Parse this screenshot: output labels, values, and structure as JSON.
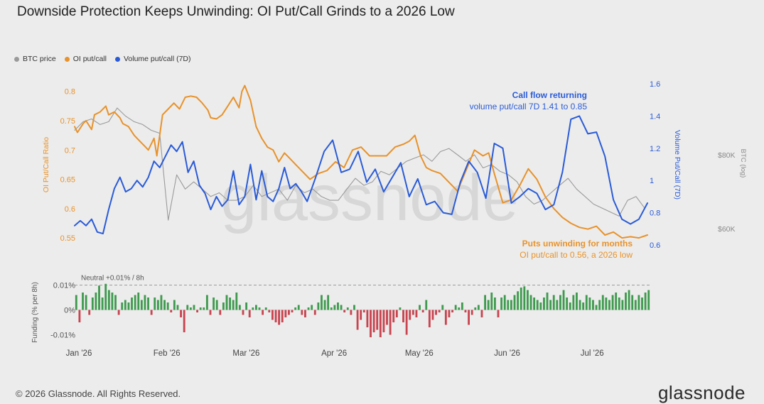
{
  "title": "Downside Protection Keeps Unwinding: OI Put/Call Grinds to a 2026 Low",
  "legend": [
    {
      "label": "BTC price",
      "color": "#9a9a9a"
    },
    {
      "label": "OI put/call",
      "color": "#e8922b"
    },
    {
      "label": "Volume put/call (7D)",
      "color": "#2a5bd7"
    }
  ],
  "footer": "© 2026 Glassnode. All Rights Reserved.",
  "brand": "glassnode",
  "watermark": "glassnode",
  "chart_data": [
    {
      "type": "line",
      "ylabel_left": "OI Put/Call Ratio",
      "ylabel_right": "Volume Put/Call (7D)",
      "ylabel_far_right": "BTC (log)",
      "yticks_left": [
        "0.8",
        "0.75",
        "0.7",
        "0.65",
        "0.6",
        "0.55"
      ],
      "ylim_left": [
        0.538,
        0.813
      ],
      "yticks_right": [
        "1.6",
        "1.4",
        "1.2",
        "1",
        "0.8",
        "0.6"
      ],
      "ylim_right": [
        0.6,
        1.6
      ],
      "yticks_far_right": [
        "$80K",
        "$60K"
      ],
      "x_range": [
        "2026-01-01",
        "2026-07-23"
      ],
      "series": [
        {
          "name": "OI put/call",
          "color": "#e8922b",
          "axis": "left",
          "x": [
            "2026-01-01",
            "2026-01-02",
            "2026-01-04",
            "2026-01-05",
            "2026-01-07",
            "2026-01-08",
            "2026-01-10",
            "2026-01-12",
            "2026-01-13",
            "2026-01-15",
            "2026-01-17",
            "2026-01-18",
            "2026-01-20",
            "2026-01-22",
            "2026-01-24",
            "2026-01-26",
            "2026-01-27",
            "2026-01-29",
            "2026-01-30",
            "2026-02-01",
            "2026-02-03",
            "2026-02-05",
            "2026-02-07",
            "2026-02-09",
            "2026-02-11",
            "2026-02-13",
            "2026-02-15",
            "2026-02-17",
            "2026-02-18",
            "2026-02-20",
            "2026-02-22",
            "2026-02-24",
            "2026-02-26",
            "2026-02-28",
            "2026-03-01",
            "2026-03-02",
            "2026-03-04",
            "2026-03-06",
            "2026-03-08",
            "2026-03-10",
            "2026-03-12",
            "2026-03-14",
            "2026-03-16",
            "2026-03-18",
            "2026-03-20",
            "2026-03-22",
            "2026-03-25",
            "2026-03-28",
            "2026-03-31",
            "2026-04-03",
            "2026-04-06",
            "2026-04-09",
            "2026-04-12",
            "2026-04-15",
            "2026-04-18",
            "2026-04-21",
            "2026-04-24",
            "2026-04-27",
            "2026-04-29",
            "2026-05-01",
            "2026-05-03",
            "2026-05-05",
            "2026-05-07",
            "2026-05-10",
            "2026-05-13",
            "2026-05-16",
            "2026-05-19",
            "2026-05-22",
            "2026-05-25",
            "2026-05-27",
            "2026-05-29",
            "2026-06-01",
            "2026-06-04",
            "2026-06-07",
            "2026-06-10",
            "2026-06-13",
            "2026-06-16",
            "2026-06-19",
            "2026-06-22",
            "2026-06-25",
            "2026-06-28",
            "2026-07-01",
            "2026-07-04",
            "2026-07-07",
            "2026-07-10",
            "2026-07-13",
            "2026-07-16",
            "2026-07-19",
            "2026-07-22"
          ],
          "y": [
            0.74,
            0.73,
            0.745,
            0.75,
            0.735,
            0.76,
            0.765,
            0.775,
            0.76,
            0.765,
            0.755,
            0.745,
            0.74,
            0.725,
            0.715,
            0.705,
            0.7,
            0.72,
            0.69,
            0.76,
            0.77,
            0.78,
            0.77,
            0.79,
            0.792,
            0.79,
            0.78,
            0.768,
            0.755,
            0.753,
            0.76,
            0.775,
            0.79,
            0.772,
            0.8,
            0.81,
            0.785,
            0.74,
            0.72,
            0.705,
            0.7,
            0.68,
            0.695,
            0.685,
            0.675,
            0.665,
            0.65,
            0.66,
            0.665,
            0.68,
            0.67,
            0.7,
            0.705,
            0.69,
            0.69,
            0.69,
            0.705,
            0.71,
            0.715,
            0.725,
            0.69,
            0.67,
            0.665,
            0.66,
            0.645,
            0.63,
            0.665,
            0.7,
            0.69,
            0.695,
            0.66,
            0.61,
            0.615,
            0.64,
            0.668,
            0.65,
            0.62,
            0.6,
            0.585,
            0.575,
            0.568,
            0.565,
            0.57,
            0.555,
            0.56,
            0.55,
            0.552,
            0.55,
            0.555
          ]
        },
        {
          "name": "Volume put/call (7D)",
          "color": "#2a5bd7",
          "axis": "right",
          "x": [
            "2026-01-01",
            "2026-01-03",
            "2026-01-05",
            "2026-01-07",
            "2026-01-09",
            "2026-01-11",
            "2026-01-13",
            "2026-01-15",
            "2026-01-17",
            "2026-01-19",
            "2026-01-21",
            "2026-01-23",
            "2026-01-25",
            "2026-01-27",
            "2026-01-29",
            "2026-01-31",
            "2026-02-02",
            "2026-02-04",
            "2026-02-06",
            "2026-02-08",
            "2026-02-10",
            "2026-02-12",
            "2026-02-14",
            "2026-02-16",
            "2026-02-18",
            "2026-02-20",
            "2026-02-22",
            "2026-02-24",
            "2026-02-26",
            "2026-02-28",
            "2026-03-02",
            "2026-03-04",
            "2026-03-06",
            "2026-03-08",
            "2026-03-10",
            "2026-03-12",
            "2026-03-14",
            "2026-03-16",
            "2026-03-18",
            "2026-03-20",
            "2026-03-22",
            "2026-03-24",
            "2026-03-27",
            "2026-03-30",
            "2026-04-02",
            "2026-04-05",
            "2026-04-08",
            "2026-04-11",
            "2026-04-14",
            "2026-04-17",
            "2026-04-20",
            "2026-04-23",
            "2026-04-26",
            "2026-04-29",
            "2026-05-02",
            "2026-05-05",
            "2026-05-08",
            "2026-05-11",
            "2026-05-14",
            "2026-05-17",
            "2026-05-20",
            "2026-05-23",
            "2026-05-26",
            "2026-05-29",
            "2026-06-01",
            "2026-06-04",
            "2026-06-07",
            "2026-06-10",
            "2026-06-13",
            "2026-06-16",
            "2026-06-19",
            "2026-06-22",
            "2026-06-25",
            "2026-06-28",
            "2026-07-01",
            "2026-07-04",
            "2026-07-07",
            "2026-07-10",
            "2026-07-13",
            "2026-07-16",
            "2026-07-19",
            "2026-07-22"
          ],
          "y": [
            0.72,
            0.75,
            0.72,
            0.76,
            0.68,
            0.67,
            0.82,
            0.95,
            1.02,
            0.93,
            0.95,
            1.0,
            0.96,
            1.02,
            1.12,
            1.08,
            1.15,
            1.22,
            1.18,
            1.24,
            1.05,
            1.12,
            0.97,
            0.92,
            0.82,
            0.9,
            0.84,
            0.88,
            1.06,
            0.85,
            0.9,
            1.1,
            0.88,
            1.06,
            0.9,
            0.87,
            0.95,
            1.08,
            0.95,
            0.98,
            0.93,
            0.87,
            1.02,
            1.18,
            1.25,
            1.05,
            1.07,
            1.18,
            0.99,
            1.07,
            0.93,
            1.02,
            1.11,
            0.9,
            1.01,
            0.85,
            0.87,
            0.8,
            0.79,
            0.99,
            1.12,
            1.05,
            0.89,
            1.23,
            1.2,
            0.86,
            0.9,
            0.95,
            0.92,
            0.82,
            0.85,
            1.05,
            1.38,
            1.4,
            1.29,
            1.3,
            1.15,
            0.88,
            0.76,
            0.73,
            0.76,
            0.86
          ]
        },
        {
          "name": "BTC price",
          "color": "#9a9a9a",
          "axis": "far-right",
          "y_unit": "$K",
          "x": [
            "2026-01-01",
            "2026-01-04",
            "2026-01-07",
            "2026-01-10",
            "2026-01-13",
            "2026-01-16",
            "2026-01-19",
            "2026-01-22",
            "2026-01-25",
            "2026-01-28",
            "2026-01-31",
            "2026-02-03",
            "2026-02-06",
            "2026-02-09",
            "2026-02-12",
            "2026-02-15",
            "2026-02-18",
            "2026-02-21",
            "2026-02-24",
            "2026-02-27",
            "2026-03-02",
            "2026-03-05",
            "2026-03-08",
            "2026-03-11",
            "2026-03-14",
            "2026-03-17",
            "2026-03-20",
            "2026-03-23",
            "2026-03-26",
            "2026-03-29",
            "2026-04-01",
            "2026-04-04",
            "2026-04-07",
            "2026-04-10",
            "2026-04-13",
            "2026-04-16",
            "2026-04-19",
            "2026-04-22",
            "2026-04-25",
            "2026-04-28",
            "2026-05-01",
            "2026-05-04",
            "2026-05-07",
            "2026-05-10",
            "2026-05-13",
            "2026-05-16",
            "2026-05-19",
            "2026-05-22",
            "2026-05-25",
            "2026-05-28",
            "2026-05-31",
            "2026-06-03",
            "2026-06-06",
            "2026-06-09",
            "2026-06-12",
            "2026-06-15",
            "2026-06-18",
            "2026-06-21",
            "2026-06-24",
            "2026-06-27",
            "2026-06-30",
            "2026-07-03",
            "2026-07-06",
            "2026-07-09",
            "2026-07-12",
            "2026-07-15",
            "2026-07-18",
            "2026-07-21"
          ],
          "y": [
            88,
            91,
            92,
            90,
            91,
            96,
            93,
            91,
            90,
            88,
            87,
            62,
            74,
            70,
            72,
            70,
            68,
            69,
            67,
            67,
            68,
            71,
            68,
            69,
            70,
            67,
            71,
            69,
            70,
            68,
            67,
            67,
            70,
            73,
            71,
            72,
            75,
            74,
            76,
            78,
            79,
            80,
            78,
            81,
            82,
            80,
            78,
            80,
            76,
            77,
            75,
            74,
            72,
            68,
            66,
            67,
            69,
            71,
            73,
            70,
            68,
            66,
            65,
            64,
            63,
            67,
            68,
            65
          ]
        }
      ]
    },
    {
      "type": "bar",
      "ylabel": "Funding (% per 8h)",
      "yticks": [
        "0.01%",
        "0%",
        "-0.01%"
      ],
      "ylim": [
        -0.013,
        0.011
      ],
      "reference_line": {
        "value": 0.01,
        "label": "Neutral +0.01% / 8h"
      },
      "x_range": [
        "2026-01-01",
        "2026-07-23"
      ],
      "positive_color": "#3f9a4f",
      "negative_color": "#c8444f",
      "values": [
        0.006,
        -0.005,
        0.007,
        0.006,
        -0.002,
        0.005,
        0.007,
        0.0098,
        0.005,
        0.0105,
        0.008,
        0.007,
        0.006,
        -0.002,
        0.003,
        0.004,
        0.003,
        0.005,
        0.006,
        0.007,
        0.004,
        0.006,
        0.005,
        -0.002,
        0.005,
        0.004,
        0.006,
        0.004,
        0.003,
        -0.001,
        0.004,
        0.002,
        -0.003,
        -0.009,
        0.002,
        0.001,
        0.002,
        -0.001,
        0.001,
        0.001,
        0.006,
        -0.002,
        0.005,
        0.004,
        -0.002,
        0.003,
        0.006,
        0.005,
        0.004,
        0.007,
        0.002,
        -0.002,
        0.003,
        -0.003,
        0.001,
        0.002,
        0.001,
        -0.002,
        0.001,
        -0.001,
        -0.004,
        -0.005,
        -0.006,
        -0.005,
        -0.003,
        -0.002,
        -0.001,
        0.001,
        0.002,
        -0.002,
        -0.003,
        0.001,
        0.002,
        -0.002,
        0.003,
        0.006,
        0.004,
        0.006,
        0.001,
        0.002,
        0.003,
        0.002,
        -0.001,
        0.001,
        -0.002,
        0.002,
        -0.008,
        -0.004,
        -0.001,
        -0.007,
        -0.011,
        -0.009,
        -0.008,
        -0.011,
        -0.009,
        -0.006,
        -0.01,
        -0.005,
        -0.003,
        0.001,
        -0.005,
        -0.01,
        -0.004,
        -0.002,
        -0.003,
        0.002,
        -0.001,
        0.004,
        -0.007,
        -0.004,
        -0.002,
        -0.001,
        0.002,
        -0.006,
        -0.003,
        -0.001,
        0.002,
        0.001,
        0.003,
        -0.001,
        -0.006,
        -0.002,
        0.001,
        0.002,
        -0.003,
        0.006,
        0.004,
        0.007,
        0.005,
        -0.003,
        0.005,
        0.006,
        0.004,
        0.004,
        0.006,
        0.0075,
        0.009,
        0.0095,
        0.008,
        0.006,
        0.005,
        0.004,
        0.003,
        0.005,
        0.007,
        0.004,
        0.006,
        0.004,
        0.006,
        0.008,
        0.005,
        0.003,
        0.006,
        0.007,
        0.004,
        0.003,
        0.006,
        0.005,
        0.004,
        0.002,
        0.004,
        0.006,
        0.005,
        0.004,
        0.006,
        0.007,
        0.005,
        0.004,
        0.007,
        0.008,
        0.006,
        0.004,
        0.006,
        0.005,
        0.007,
        0.008
      ]
    }
  ],
  "annotations": [
    {
      "text": "Call flow returning",
      "color": "#2a5bd7",
      "bold": true
    },
    {
      "text": "volume put/call 7D 1.41 to 0.85",
      "color": "#2a5bd7",
      "bold": false
    },
    {
      "text": "Puts unwinding for months",
      "color": "#e8922b",
      "bold": true
    },
    {
      "text": "OI put/call to 0.56, a 2026 low",
      "color": "#e8922b",
      "bold": false
    }
  ],
  "x_axis": {
    "labels": [
      "Jan '26",
      "Feb '26",
      "Mar '26",
      "Apr '26",
      "May '26",
      "Jun '26",
      "Jul '26"
    ]
  }
}
